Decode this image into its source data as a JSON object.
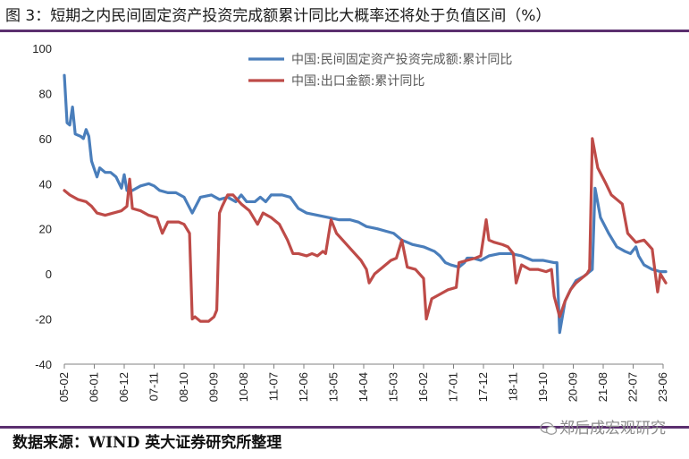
{
  "title": "图 3：短期之内民间固定资产投资完成额累计同比大概率还将处于负值区间（%）",
  "source": "数据来源：WIND  英大证券研究所整理",
  "watermark": "郑后成宏观研究",
  "colors": {
    "series1": "#4a7ebb",
    "series2": "#be4b48",
    "rule": "#5b2f6f"
  },
  "chart_data": {
    "type": "line",
    "ylim": [
      -40,
      100
    ],
    "y_ticks": [
      -40,
      -20,
      0,
      20,
      40,
      60,
      80,
      100
    ],
    "x_tick_labels": [
      "05-02",
      "06-01",
      "06-12",
      "07-11",
      "08-10",
      "09-09",
      "10-08",
      "11-07",
      "12-06",
      "13-05",
      "14-04",
      "15-03",
      "16-02",
      "17-01",
      "17-12",
      "18-11",
      "19-10",
      "20-09",
      "21-08",
      "22-07",
      "23-06"
    ],
    "x_tick_index": [
      0,
      11,
      22,
      33,
      44,
      55,
      66,
      77,
      88,
      99,
      110,
      121,
      132,
      143,
      154,
      165,
      176,
      187,
      198,
      209,
      220
    ],
    "n_points": 221,
    "legend_position": "top-right",
    "series": [
      {
        "name": "中国:民间固定资产投资完成额:累计同比",
        "color": "#4a7ebb",
        "points": [
          [
            0,
            88
          ],
          [
            1,
            67
          ],
          [
            2,
            66
          ],
          [
            3,
            74
          ],
          [
            4,
            62
          ],
          [
            6,
            61
          ],
          [
            7,
            60
          ],
          [
            8,
            64
          ],
          [
            9,
            61
          ],
          [
            10,
            50
          ],
          [
            12,
            43
          ],
          [
            13,
            47
          ],
          [
            15,
            45
          ],
          [
            17,
            45
          ],
          [
            19,
            43
          ],
          [
            21,
            38
          ],
          [
            22,
            44
          ],
          [
            23,
            37
          ],
          [
            25,
            37
          ],
          [
            28,
            39
          ],
          [
            31,
            40
          ],
          [
            33,
            39
          ],
          [
            35,
            37
          ],
          [
            38,
            36
          ],
          [
            41,
            36
          ],
          [
            44,
            34
          ],
          [
            47,
            27
          ],
          [
            50,
            34
          ],
          [
            54,
            35
          ],
          [
            57,
            33
          ],
          [
            60,
            34
          ],
          [
            63,
            32
          ],
          [
            65,
            35
          ],
          [
            67,
            32
          ],
          [
            70,
            32
          ],
          [
            72,
            34
          ],
          [
            74,
            32
          ],
          [
            76,
            35
          ],
          [
            80,
            35
          ],
          [
            83,
            34
          ],
          [
            86,
            29
          ],
          [
            89,
            27
          ],
          [
            93,
            26
          ],
          [
            97,
            25
          ],
          [
            101,
            24
          ],
          [
            105,
            24
          ],
          [
            108,
            23
          ],
          [
            111,
            21
          ],
          [
            115,
            20
          ],
          [
            118,
            19
          ],
          [
            121,
            18
          ],
          [
            124,
            15
          ],
          [
            128,
            13
          ],
          [
            132,
            12
          ],
          [
            136,
            10
          ],
          [
            138,
            8
          ],
          [
            140,
            5
          ],
          [
            142,
            4
          ],
          [
            145,
            3
          ],
          [
            147,
            5
          ],
          [
            148,
            7
          ],
          [
            150,
            7
          ],
          [
            153,
            6
          ],
          [
            156,
            8
          ],
          [
            160,
            9
          ],
          [
            164,
            9
          ],
          [
            168,
            8
          ],
          [
            172,
            6
          ],
          [
            176,
            6
          ],
          [
            180,
            5
          ],
          [
            181,
            5
          ],
          [
            182,
            -26
          ],
          [
            184,
            -12
          ],
          [
            186,
            -7
          ],
          [
            188,
            -3
          ],
          [
            191,
            -1
          ],
          [
            193,
            1
          ],
          [
            194,
            2
          ],
          [
            195,
            38
          ],
          [
            197,
            25
          ],
          [
            200,
            18
          ],
          [
            203,
            12
          ],
          [
            206,
            10
          ],
          [
            208,
            9
          ],
          [
            210,
            12
          ],
          [
            211,
            8
          ],
          [
            213,
            4
          ],
          [
            216,
            2
          ],
          [
            219,
            1
          ],
          [
            221,
            1
          ]
        ]
      },
      {
        "name": "中国:出口金额:累计同比",
        "color": "#be4b48",
        "points": [
          [
            0,
            37
          ],
          [
            2,
            35
          ],
          [
            5,
            33
          ],
          [
            8,
            32
          ],
          [
            10,
            30
          ],
          [
            12,
            27
          ],
          [
            15,
            26
          ],
          [
            18,
            27
          ],
          [
            21,
            28
          ],
          [
            23,
            30
          ],
          [
            24,
            42
          ],
          [
            25,
            29
          ],
          [
            28,
            28
          ],
          [
            31,
            26
          ],
          [
            34,
            25
          ],
          [
            36,
            18
          ],
          [
            38,
            23
          ],
          [
            42,
            23
          ],
          [
            44,
            22
          ],
          [
            46,
            18
          ],
          [
            47,
            -20
          ],
          [
            48,
            -19
          ],
          [
            50,
            -21
          ],
          [
            53,
            -21
          ],
          [
            55,
            -19
          ],
          [
            56,
            -16
          ],
          [
            57,
            27
          ],
          [
            58,
            30
          ],
          [
            60,
            35
          ],
          [
            62,
            35
          ],
          [
            65,
            31
          ],
          [
            68,
            28
          ],
          [
            71,
            22
          ],
          [
            73,
            27
          ],
          [
            76,
            25
          ],
          [
            79,
            22
          ],
          [
            82,
            15
          ],
          [
            84,
            9
          ],
          [
            86,
            9
          ],
          [
            89,
            8
          ],
          [
            91,
            9
          ],
          [
            93,
            8
          ],
          [
            95,
            10
          ],
          [
            96,
            9
          ],
          [
            98,
            24
          ],
          [
            100,
            18
          ],
          [
            103,
            14
          ],
          [
            106,
            10
          ],
          [
            109,
            6
          ],
          [
            111,
            2
          ],
          [
            112,
            -4
          ],
          [
            114,
            0
          ],
          [
            117,
            3
          ],
          [
            120,
            6
          ],
          [
            122,
            7
          ],
          [
            124,
            15
          ],
          [
            126,
            3
          ],
          [
            129,
            2
          ],
          [
            132,
            -2
          ],
          [
            133,
            -20
          ],
          [
            135,
            -11
          ],
          [
            138,
            -9
          ],
          [
            141,
            -7
          ],
          [
            144,
            -6
          ],
          [
            145,
            5
          ],
          [
            148,
            6
          ],
          [
            151,
            7
          ],
          [
            153,
            8
          ],
          [
            155,
            24
          ],
          [
            156,
            15
          ],
          [
            158,
            14
          ],
          [
            161,
            13
          ],
          [
            163,
            12
          ],
          [
            165,
            9
          ],
          [
            166,
            -4
          ],
          [
            168,
            4
          ],
          [
            171,
            2
          ],
          [
            174,
            2
          ],
          [
            177,
            1
          ],
          [
            179,
            2
          ],
          [
            180,
            -10
          ],
          [
            182,
            -19
          ],
          [
            184,
            -12
          ],
          [
            186,
            -7
          ],
          [
            188,
            -4
          ],
          [
            190,
            -2
          ],
          [
            192,
            0
          ],
          [
            193,
            2
          ],
          [
            194,
            60
          ],
          [
            196,
            47
          ],
          [
            199,
            40
          ],
          [
            201,
            35
          ],
          [
            203,
            33
          ],
          [
            205,
            31
          ],
          [
            207,
            18
          ],
          [
            210,
            14
          ],
          [
            213,
            15
          ],
          [
            216,
            11
          ],
          [
            218,
            -8
          ],
          [
            219,
            0
          ],
          [
            221,
            -4
          ]
        ]
      }
    ]
  }
}
